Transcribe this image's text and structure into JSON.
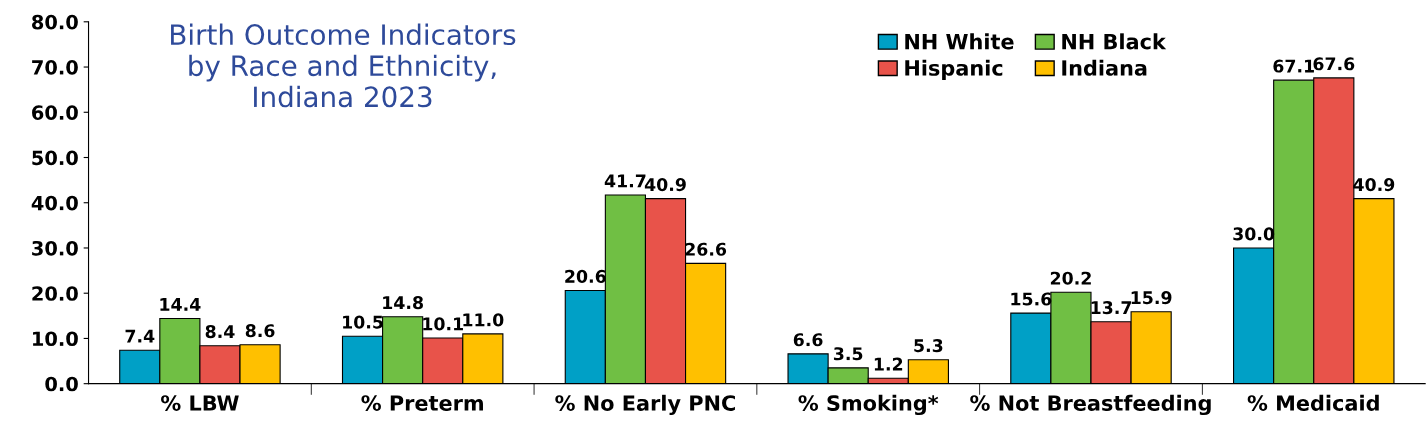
{
  "chart_data": {
    "type": "bar",
    "title": "Birth Outcome Indicators\nby Race and Ethnicity,\nIndiana 2023",
    "categories": [
      "% LBW",
      "% Preterm",
      "% No Early PNC",
      "% Smoking*",
      "% Not Breastfeeding",
      "% Medicaid"
    ],
    "series": [
      {
        "name": "NH White",
        "color": "#00a0c6",
        "values": [
          7.4,
          10.5,
          20.6,
          6.6,
          15.6,
          30.0
        ],
        "value_labels": [
          "7.4",
          "10.5",
          "20.6",
          "6.6",
          "15.6",
          "30.0"
        ]
      },
      {
        "name": "NH Black",
        "color": "#70bf44",
        "values": [
          14.4,
          14.8,
          41.7,
          3.5,
          20.2,
          67.1
        ],
        "value_labels": [
          "14.4",
          "14.8",
          "41.7",
          "3.5",
          "20.2",
          "67.1"
        ]
      },
      {
        "name": "Hispanic",
        "color": "#e8534a",
        "values": [
          8.4,
          10.1,
          40.9,
          1.2,
          13.7,
          67.6
        ],
        "value_labels": [
          "8.4",
          "10.1",
          "40.9",
          "1.2",
          "13.7",
          "67.6"
        ]
      },
      {
        "name": "Indiana",
        "color": "#ffc000",
        "values": [
          8.6,
          11.0,
          26.6,
          5.3,
          15.9,
          40.9
        ],
        "value_labels": [
          "8.6",
          "11.0",
          "26.6",
          "5.3",
          "15.9",
          "40.9"
        ]
      }
    ],
    "ylim": [
      0,
      80
    ],
    "yticks": [
      {
        "value": 0,
        "label": "0.0"
      },
      {
        "value": 10,
        "label": "10.0"
      },
      {
        "value": 20,
        "label": "20.0"
      },
      {
        "value": 30,
        "label": "30.0"
      },
      {
        "value": 40,
        "label": "40.0"
      },
      {
        "value": 50,
        "label": "50.0"
      },
      {
        "value": 60,
        "label": "60.0"
      },
      {
        "value": 70,
        "label": "70.0"
      },
      {
        "value": 80,
        "label": "80.0"
      }
    ],
    "grid": false,
    "legend": "top right"
  }
}
